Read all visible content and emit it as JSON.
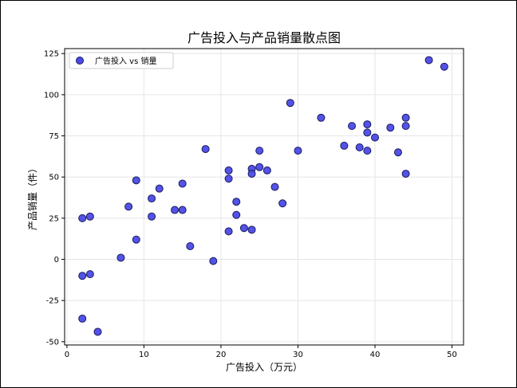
{
  "chart_data": {
    "type": "scatter",
    "title": "广告投入与产品销量散点图",
    "xlabel": "广告投入（万元）",
    "ylabel": "产品销量（件）",
    "xlim": [
      -0.3,
      51.5
    ],
    "ylim": [
      -52,
      128
    ],
    "xticks": [
      0,
      10,
      20,
      30,
      40,
      50
    ],
    "yticks": [
      -50,
      -25,
      0,
      25,
      50,
      75,
      100,
      125
    ],
    "grid": true,
    "legend_position": "top-left",
    "marker_color": "#4a4ae6",
    "marker_edge_color": "#1a1a5e",
    "series": [
      {
        "name": "广告投入 vs 销量",
        "points": [
          [
            2,
            25
          ],
          [
            2,
            -10
          ],
          [
            2,
            -36
          ],
          [
            3,
            26
          ],
          [
            3,
            -9
          ],
          [
            4,
            -44
          ],
          [
            7,
            1
          ],
          [
            8,
            32
          ],
          [
            9,
            48
          ],
          [
            9,
            12
          ],
          [
            11,
            37
          ],
          [
            11,
            26
          ],
          [
            12,
            43
          ],
          [
            14,
            30
          ],
          [
            15,
            46
          ],
          [
            15,
            30
          ],
          [
            16,
            8
          ],
          [
            18,
            67
          ],
          [
            19,
            -1
          ],
          [
            21,
            54
          ],
          [
            21,
            49
          ],
          [
            21,
            17
          ],
          [
            22,
            35
          ],
          [
            22,
            27
          ],
          [
            23,
            19
          ],
          [
            24,
            55
          ],
          [
            24,
            52
          ],
          [
            24,
            18
          ],
          [
            25,
            66
          ],
          [
            25,
            56
          ],
          [
            26,
            54
          ],
          [
            27,
            44
          ],
          [
            28,
            34
          ],
          [
            29,
            95
          ],
          [
            30,
            66
          ],
          [
            33,
            86
          ],
          [
            36,
            69
          ],
          [
            37,
            81
          ],
          [
            38,
            68
          ],
          [
            39,
            82
          ],
          [
            39,
            77
          ],
          [
            39,
            66
          ],
          [
            40,
            74
          ],
          [
            42,
            80
          ],
          [
            43,
            65
          ],
          [
            44,
            86
          ],
          [
            44,
            81
          ],
          [
            44,
            52
          ],
          [
            47,
            121
          ],
          [
            49,
            117
          ]
        ]
      }
    ]
  }
}
